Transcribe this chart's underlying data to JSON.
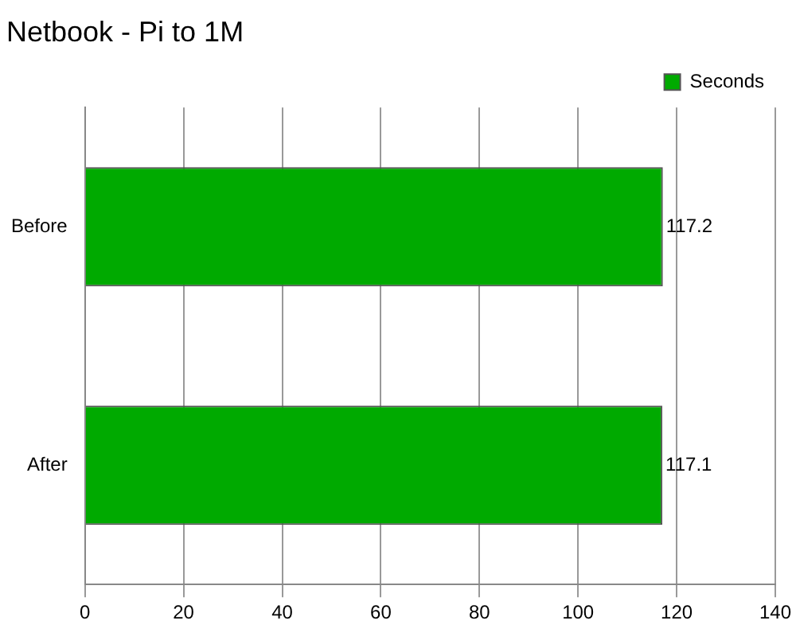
{
  "chart_data": {
    "type": "bar",
    "orientation": "horizontal",
    "title": "Netbook - Pi to 1M",
    "categories": [
      "Before",
      "After"
    ],
    "series": [
      {
        "name": "Seconds",
        "color": "#00aa00",
        "values": [
          117.2,
          117.1
        ]
      }
    ],
    "xlim": [
      0,
      140
    ],
    "xticks": [
      0,
      20,
      40,
      60,
      80,
      100,
      120,
      140
    ],
    "grid": "x",
    "legend": "top right",
    "data_labels": true
  }
}
